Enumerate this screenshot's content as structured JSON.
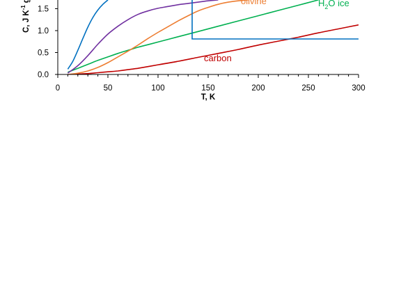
{
  "chart_data": {
    "type": "line",
    "xlabel": "T, K",
    "ylabel": "C, J K",
    "ylabel_sup": "-1",
    "ylabel_tail": "g",
    "xlim": [
      0,
      300
    ],
    "ylim": [
      0,
      1.7
    ],
    "x_ticks": [
      0,
      50,
      100,
      150,
      200,
      250,
      300
    ],
    "y_ticks": [
      0.0,
      0.5,
      1.0,
      1.5
    ],
    "x_tick_labels": [
      "0",
      "50",
      "100",
      "150",
      "200",
      "250",
      "300"
    ],
    "y_tick_labels": [
      "0.0",
      "0.5",
      "1.0",
      "1.5"
    ],
    "grid": false,
    "legend": "none",
    "series": [
      {
        "label": "carbon",
        "color": "#c00000",
        "x": [
          10,
          20,
          30,
          40,
          50,
          60,
          70,
          80,
          90,
          100,
          120,
          140,
          160,
          180,
          200,
          220,
          240,
          260,
          280,
          300
        ],
        "y": [
          0.0,
          0.01,
          0.02,
          0.04,
          0.06,
          0.08,
          0.11,
          0.14,
          0.18,
          0.22,
          0.3,
          0.39,
          0.48,
          0.57,
          0.67,
          0.76,
          0.85,
          0.95,
          1.04,
          1.13
        ]
      },
      {
        "label": "H2O ice",
        "color": "#00b050",
        "x": [
          10,
          20,
          30,
          40,
          50,
          60,
          70,
          80,
          90,
          100,
          120,
          140,
          160,
          180,
          200,
          220,
          240,
          260
        ],
        "y": [
          0.05,
          0.14,
          0.23,
          0.32,
          0.4,
          0.48,
          0.55,
          0.62,
          0.68,
          0.74,
          0.86,
          0.98,
          1.1,
          1.22,
          1.34,
          1.46,
          1.58,
          1.7
        ]
      },
      {
        "label": "olivine",
        "color": "#ed7d31",
        "x": [
          10,
          20,
          30,
          40,
          50,
          60,
          70,
          80,
          90,
          100,
          110,
          120,
          130,
          140,
          150,
          160,
          170,
          180,
          190
        ],
        "y": [
          0.0,
          0.03,
          0.08,
          0.16,
          0.27,
          0.4,
          0.53,
          0.67,
          0.82,
          0.96,
          1.09,
          1.22,
          1.34,
          1.45,
          1.53,
          1.6,
          1.65,
          1.68,
          1.7
        ]
      },
      {
        "label": "",
        "color": "#7030a0",
        "x": [
          10,
          20,
          30,
          40,
          50,
          60,
          70,
          80,
          90,
          100,
          110,
          120,
          130,
          140,
          150,
          160
        ],
        "y": [
          0.03,
          0.2,
          0.43,
          0.69,
          0.92,
          1.1,
          1.25,
          1.37,
          1.45,
          1.51,
          1.55,
          1.59,
          1.62,
          1.65,
          1.68,
          1.7
        ]
      },
      {
        "label": "",
        "color": "#0070c0",
        "x": [
          10,
          15,
          20,
          25,
          30,
          35,
          40,
          45,
          50
        ],
        "y": [
          0.12,
          0.3,
          0.55,
          0.82,
          1.08,
          1.3,
          1.47,
          1.6,
          1.7
        ]
      },
      {
        "label": "",
        "color": "#0070c0",
        "x": [
          134,
          134,
          134,
          300
        ],
        "y": [
          1.7,
          0.81,
          0.81,
          0.81
        ]
      }
    ],
    "annotations": [
      {
        "text": "carbon",
        "color": "#c00000"
      },
      {
        "text": "olivine",
        "color": "#ed7d31"
      },
      {
        "text_main": "H",
        "text_sub": "2",
        "text_tail": "O ice",
        "color": "#00b050"
      }
    ]
  }
}
